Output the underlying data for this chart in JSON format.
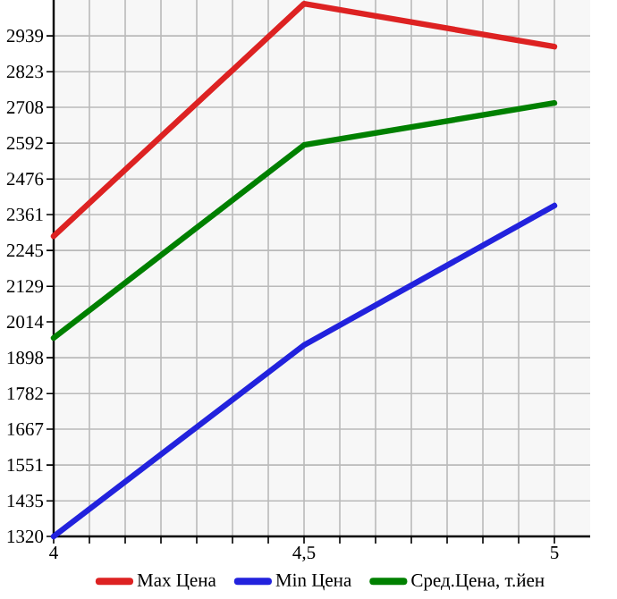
{
  "chart_data": {
    "type": "line",
    "x": [
      4,
      4.5,
      5
    ],
    "xlim": [
      4,
      5.0714
    ],
    "xticks": [
      4,
      {
        "value": 4.5,
        "label": "4,5"
      },
      5
    ],
    "ylim": [
      1320,
      3055
    ],
    "yticks": [
      1320,
      1435,
      1551,
      1667,
      1782,
      1898,
      2014,
      2129,
      2245,
      2361,
      2476,
      2592,
      2708,
      2823,
      2939
    ],
    "grid": true,
    "legend": "bottom",
    "marker": "none",
    "line_style": "solid",
    "series": [
      {
        "name": "Max Цена",
        "color": "#dd2222",
        "values": [
          2291,
          3043,
          2904
        ]
      },
      {
        "name": "Min Цена",
        "color": "#2222dd",
        "values": [
          1320,
          1939,
          2390
        ]
      },
      {
        "name": "Сред.Цена, т.йен",
        "color": "#008000",
        "values": [
          1962,
          2586,
          2722
        ]
      }
    ]
  }
}
